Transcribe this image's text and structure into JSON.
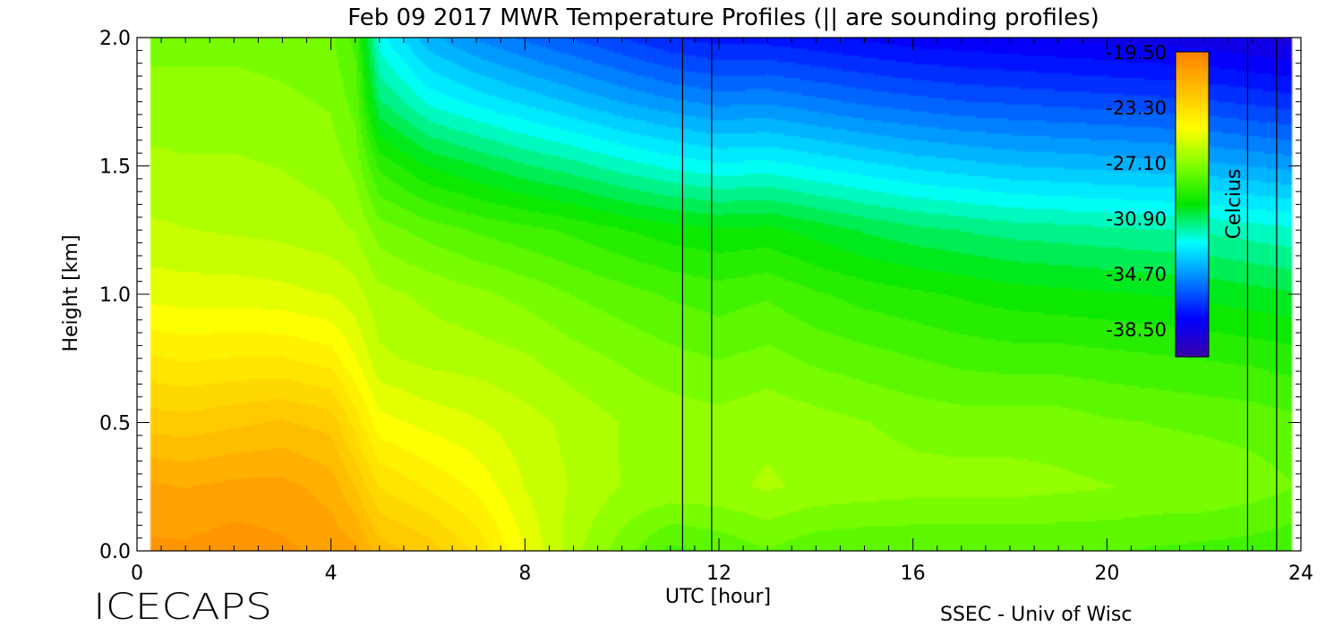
{
  "chart_data": {
    "type": "heatmap",
    "title": "Feb 09 2017 MWR Temperature Profiles (|| are sounding profiles)",
    "xlabel": "UTC [hour]",
    "ylabel": "Height [km]",
    "xlim": [
      0,
      24
    ],
    "ylim": [
      0,
      2.0
    ],
    "x_ticks": [
      "0",
      "4",
      "8",
      "12",
      "16",
      "20",
      "24"
    ],
    "y_ticks": [
      "0.0",
      "0.5",
      "1.0",
      "1.5",
      "2.0"
    ],
    "colorbar": {
      "label": "Celcius",
      "min": -40.4,
      "max": -19.5,
      "tick_labels": [
        "-19.50",
        "-23.30",
        "-27.10",
        "-30.90",
        "-34.70",
        "-38.50"
      ],
      "tick_values": [
        -19.5,
        -23.3,
        -27.1,
        -30.9,
        -34.7,
        -38.5
      ],
      "colormap": [
        "#3a00a8",
        "#0000ff",
        "#0080ff",
        "#00ffff",
        "#00e600",
        "#80ff00",
        "#ffff00",
        "#ffc000",
        "#ff8000"
      ]
    },
    "sounding_times_utc": [
      11.25,
      11.85,
      22.9,
      23.5
    ],
    "grid": false,
    "temperature_field": {
      "hours": [
        0,
        1,
        2,
        3,
        4,
        4.5,
        5,
        6,
        7,
        8,
        9,
        10,
        11,
        12,
        13,
        14,
        15,
        16,
        17,
        18,
        19,
        20,
        21,
        22,
        23,
        24
      ],
      "heights_km": [
        0.0,
        0.25,
        0.5,
        0.75,
        1.0,
        1.25,
        1.5,
        1.75,
        2.0
      ],
      "values_celsius": [
        [
          -20.5,
          -20.5,
          -20.3,
          -20.5,
          -20.8,
          -21.0,
          -22.0,
          -22.5,
          -23.5,
          -25.0,
          -26.5,
          -27.5,
          -28.5,
          -28.2,
          -27.8,
          -28.2,
          -28.3,
          -28.3,
          -28.3,
          -28.3,
          -28.3,
          -28.3,
          -28.4,
          -28.5,
          -28.6,
          -28.8
        ],
        [
          -21.0,
          -21.2,
          -21.0,
          -21.0,
          -21.4,
          -22.3,
          -23.4,
          -24.0,
          -24.6,
          -25.6,
          -26.2,
          -26.7,
          -26.8,
          -26.8,
          -26.6,
          -26.8,
          -26.9,
          -27.0,
          -27.0,
          -27.0,
          -27.1,
          -27.2,
          -27.3,
          -27.3,
          -27.5,
          -27.8
        ],
        [
          -22.5,
          -22.6,
          -22.4,
          -22.2,
          -22.5,
          -23.6,
          -24.8,
          -25.2,
          -25.5,
          -25.9,
          -26.3,
          -26.7,
          -26.9,
          -27.0,
          -26.8,
          -27.0,
          -27.2,
          -27.4,
          -27.5,
          -27.5,
          -27.5,
          -27.7,
          -27.8,
          -27.9,
          -28.0,
          -28.2
        ],
        [
          -23.8,
          -24.0,
          -23.9,
          -23.9,
          -24.2,
          -25.0,
          -26.0,
          -26.3,
          -26.4,
          -26.6,
          -27.0,
          -27.3,
          -27.6,
          -27.8,
          -27.6,
          -27.9,
          -28.1,
          -28.3,
          -28.5,
          -28.6,
          -28.6,
          -28.7,
          -28.8,
          -28.9,
          -29.0,
          -29.2
        ],
        [
          -25.2,
          -25.3,
          -25.3,
          -25.4,
          -25.6,
          -25.9,
          -26.5,
          -26.8,
          -27.1,
          -27.4,
          -27.8,
          -28.1,
          -28.4,
          -28.6,
          -28.4,
          -28.8,
          -29.1,
          -29.3,
          -29.5,
          -29.7,
          -29.8,
          -29.9,
          -30.0,
          -30.1,
          -30.3,
          -30.5
        ],
        [
          -26.0,
          -26.1,
          -26.2,
          -26.3,
          -26.5,
          -26.7,
          -27.5,
          -28.0,
          -28.4,
          -28.7,
          -29.0,
          -29.4,
          -29.7,
          -29.9,
          -29.8,
          -30.2,
          -30.6,
          -30.9,
          -31.1,
          -31.3,
          -31.4,
          -31.5,
          -31.6,
          -31.7,
          -31.9,
          -32.1
        ],
        [
          -26.5,
          -26.6,
          -26.6,
          -26.7,
          -26.9,
          -27.4,
          -29.0,
          -30.0,
          -30.5,
          -31.0,
          -31.4,
          -31.9,
          -32.3,
          -32.6,
          -32.5,
          -32.8,
          -33.1,
          -33.4,
          -33.6,
          -33.8,
          -33.9,
          -34.0,
          -34.1,
          -34.2,
          -34.4,
          -34.6
        ],
        [
          -27.0,
          -27.0,
          -27.0,
          -27.1,
          -27.3,
          -28.0,
          -31.0,
          -32.3,
          -32.9,
          -33.4,
          -33.9,
          -34.4,
          -34.8,
          -35.1,
          -35.0,
          -35.3,
          -35.6,
          -35.8,
          -36.0,
          -36.1,
          -36.2,
          -36.3,
          -36.4,
          -36.5,
          -36.7,
          -36.9
        ],
        [
          -27.4,
          -27.4,
          -27.4,
          -27.5,
          -27.7,
          -28.5,
          -32.5,
          -34.2,
          -35.0,
          -35.6,
          -36.1,
          -36.6,
          -37.1,
          -37.4,
          -37.4,
          -37.6,
          -37.8,
          -38.0,
          -38.1,
          -38.2,
          -38.3,
          -38.4,
          -38.5,
          -38.6,
          -38.8,
          -39.0
        ]
      ]
    }
  },
  "footer": {
    "brand": "ICECAPS",
    "credit": "SSEC - Univ of Wisc"
  }
}
